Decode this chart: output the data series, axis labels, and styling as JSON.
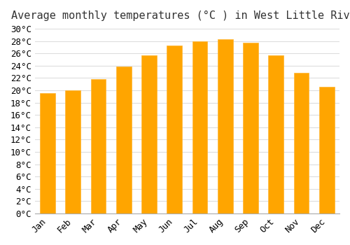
{
  "title": "Average monthly temperatures (°C ) in West Little River",
  "months": [
    "Jan",
    "Feb",
    "Mar",
    "Apr",
    "May",
    "Jun",
    "Jul",
    "Aug",
    "Sep",
    "Oct",
    "Nov",
    "Dec"
  ],
  "values": [
    19.5,
    20.0,
    21.8,
    23.8,
    25.7,
    27.3,
    28.0,
    28.3,
    27.7,
    25.7,
    22.8,
    20.6
  ],
  "bar_color_main": "#FFA500",
  "bar_color_edge": "#FFB733",
  "ylim": [
    0,
    30
  ],
  "ytick_step": 2,
  "background_color": "#ffffff",
  "grid_color": "#dddddd",
  "title_fontsize": 11,
  "tick_fontsize": 9
}
